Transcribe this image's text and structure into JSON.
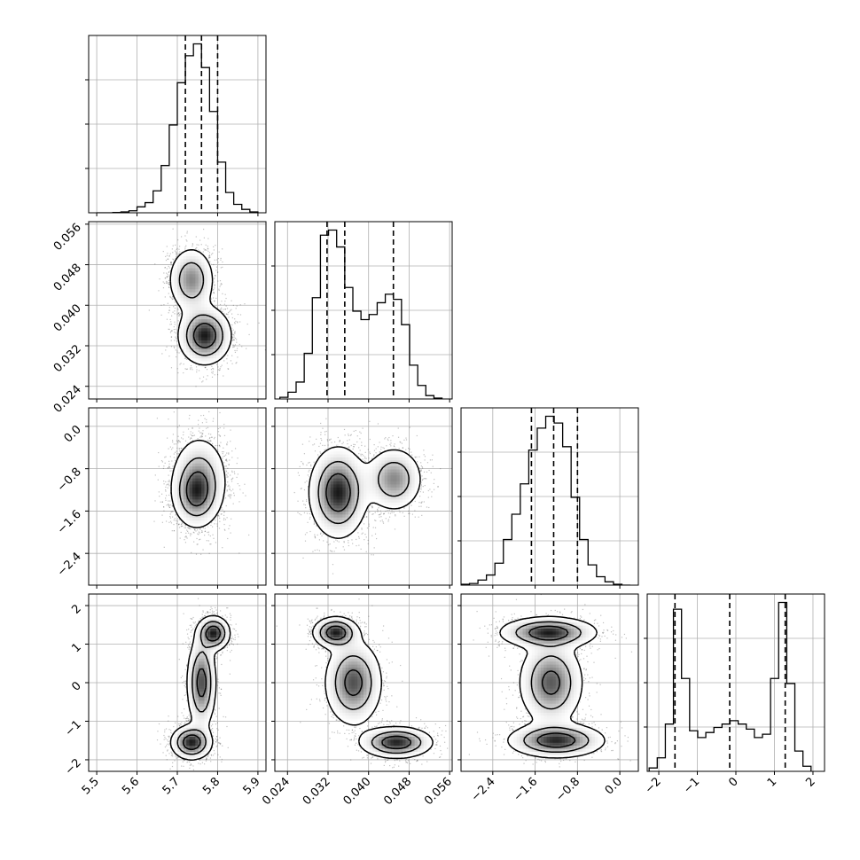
{
  "chart_data": {
    "type": "corner",
    "parameters": 4,
    "grid": true,
    "colors": {
      "hist": "#000000",
      "contour": "#000000",
      "sample": "#4d4d4d",
      "density": "#000000"
    },
    "axes": {
      "p0": {
        "range": [
          5.48,
          5.92
        ],
        "ticks": [
          5.5,
          5.6,
          5.7,
          5.8,
          5.9
        ],
        "labels": [
          "5.5",
          "5.6",
          "5.7",
          "5.8",
          "5.9"
        ]
      },
      "p1": {
        "range": [
          0.0215,
          0.0565
        ],
        "ticks": [
          0.024,
          0.032,
          0.04,
          0.048,
          0.056
        ],
        "labels": [
          "0.024",
          "0.032",
          "0.040",
          "0.048",
          "0.056"
        ]
      },
      "p2": {
        "range": [
          -3.0,
          0.35
        ],
        "ticks": [
          -2.4,
          -1.6,
          -0.8,
          0.0
        ],
        "labels": [
          "−2.4",
          "−1.6",
          "−0.8",
          "0.0"
        ]
      },
      "p3": {
        "range": [
          -2.3,
          2.3
        ],
        "ticks": [
          -2,
          -1,
          0,
          1,
          2
        ],
        "labels": [
          "−2",
          "−1",
          "0",
          "1",
          "2"
        ]
      }
    },
    "histograms": [
      {
        "parameter": "p0",
        "edges": [
          5.5,
          5.52,
          5.54,
          5.56,
          5.58,
          5.6,
          5.62,
          5.64,
          5.66,
          5.68,
          5.7,
          5.72,
          5.74,
          5.76,
          5.78,
          5.8,
          5.82,
          5.84,
          5.86,
          5.88,
          5.9
        ],
        "counts": [
          0,
          0,
          0.002,
          0.005,
          0.012,
          0.035,
          0.06,
          0.13,
          0.28,
          0.52,
          0.77,
          0.93,
          1.0,
          0.86,
          0.6,
          0.3,
          0.12,
          0.05,
          0.02,
          0.005
        ],
        "quantiles": [
          5.72,
          5.76,
          5.8
        ]
      },
      {
        "parameter": "p1",
        "edges": [
          0.0225,
          0.0241,
          0.0257,
          0.0273,
          0.0289,
          0.0305,
          0.0321,
          0.0337,
          0.0353,
          0.0369,
          0.0385,
          0.0401,
          0.0417,
          0.0433,
          0.0449,
          0.0465,
          0.0481,
          0.0497,
          0.0513,
          0.0529,
          0.0545
        ],
        "counts": [
          0.01,
          0.04,
          0.1,
          0.27,
          0.6,
          0.97,
          1.0,
          0.9,
          0.66,
          0.52,
          0.47,
          0.5,
          0.57,
          0.62,
          0.59,
          0.44,
          0.2,
          0.08,
          0.02,
          0.005
        ],
        "quantiles": [
          0.0318,
          0.0353,
          0.0449
        ]
      },
      {
        "parameter": "p2",
        "edges": [
          -3.0,
          -2.84,
          -2.68,
          -2.52,
          -2.36,
          -2.2,
          -2.04,
          -1.88,
          -1.72,
          -1.56,
          -1.4,
          -1.24,
          -1.08,
          -0.92,
          -0.76,
          -0.6,
          -0.44,
          -0.28,
          -0.12,
          0.04,
          0.2
        ],
        "counts": [
          0.005,
          0.01,
          0.03,
          0.06,
          0.13,
          0.27,
          0.42,
          0.6,
          0.8,
          0.93,
          1.0,
          0.96,
          0.82,
          0.52,
          0.27,
          0.12,
          0.05,
          0.02,
          0.005,
          0
        ],
        "quantiles": [
          -1.67,
          -1.25,
          -0.8
        ]
      },
      {
        "parameter": "p3",
        "edges": [
          -2.25,
          -2.04,
          -1.83,
          -1.62,
          -1.41,
          -1.2,
          -0.99,
          -0.78,
          -0.57,
          -0.36,
          -0.15,
          0.06,
          0.27,
          0.48,
          0.69,
          0.9,
          1.11,
          1.32,
          1.53,
          1.74,
          1.95
        ],
        "counts": [
          0.02,
          0.08,
          0.28,
          0.96,
          0.55,
          0.24,
          0.2,
          0.23,
          0.26,
          0.28,
          0.3,
          0.28,
          0.25,
          0.2,
          0.22,
          0.55,
          1.0,
          0.52,
          0.12,
          0.03
        ],
        "quantiles": [
          -1.58,
          -0.16,
          1.28
        ]
      }
    ],
    "joint": [
      {
        "x": "p0",
        "y": "p1",
        "modes": [
          {
            "mx": 5.735,
            "my": 0.045,
            "sx": 0.028,
            "sy": 0.0032,
            "w": 0.4
          },
          {
            "mx": 5.768,
            "my": 0.034,
            "sx": 0.032,
            "sy": 0.0028,
            "w": 0.6
          }
        ]
      },
      {
        "x": "p0",
        "y": "p2",
        "modes": [
          {
            "mx": 5.755,
            "my": -1.0,
            "sx": 0.035,
            "sy": 0.42,
            "w": 0.5
          },
          {
            "mx": 5.745,
            "my": -1.3,
            "sx": 0.028,
            "sy": 0.3,
            "w": 0.5
          }
        ]
      },
      {
        "x": "p1",
        "y": "p2",
        "modes": [
          {
            "mx": 0.034,
            "my": -1.25,
            "sx": 0.0028,
            "sy": 0.42,
            "w": 0.6
          },
          {
            "mx": 0.045,
            "my": -1.0,
            "sx": 0.0028,
            "sy": 0.3,
            "w": 0.4
          }
        ]
      },
      {
        "x": "p0",
        "y": "p3",
        "modes": [
          {
            "mx": 5.79,
            "my": 1.28,
            "sx": 0.02,
            "sy": 0.22,
            "w": 0.35
          },
          {
            "mx": 5.76,
            "my": 0.0,
            "sx": 0.018,
            "sy": 0.6,
            "w": 0.3
          },
          {
            "mx": 5.735,
            "my": -1.55,
            "sx": 0.025,
            "sy": 0.22,
            "w": 0.35
          }
        ]
      },
      {
        "x": "p1",
        "y": "p3",
        "modes": [
          {
            "mx": 0.0335,
            "my": 1.3,
            "sx": 0.0022,
            "sy": 0.2,
            "w": 0.35
          },
          {
            "mx": 0.037,
            "my": 0.0,
            "sx": 0.0028,
            "sy": 0.55,
            "w": 0.3
          },
          {
            "mx": 0.0455,
            "my": -1.55,
            "sx": 0.0035,
            "sy": 0.2,
            "w": 0.35
          }
        ]
      },
      {
        "x": "p2",
        "y": "p3",
        "modes": [
          {
            "mx": -1.35,
            "my": 1.3,
            "sx": 0.45,
            "sy": 0.2,
            "w": 0.35
          },
          {
            "mx": -1.3,
            "my": 0.0,
            "sx": 0.3,
            "sy": 0.55,
            "w": 0.3
          },
          {
            "mx": -1.2,
            "my": -1.5,
            "sx": 0.45,
            "sy": 0.22,
            "w": 0.35
          }
        ]
      }
    ]
  }
}
